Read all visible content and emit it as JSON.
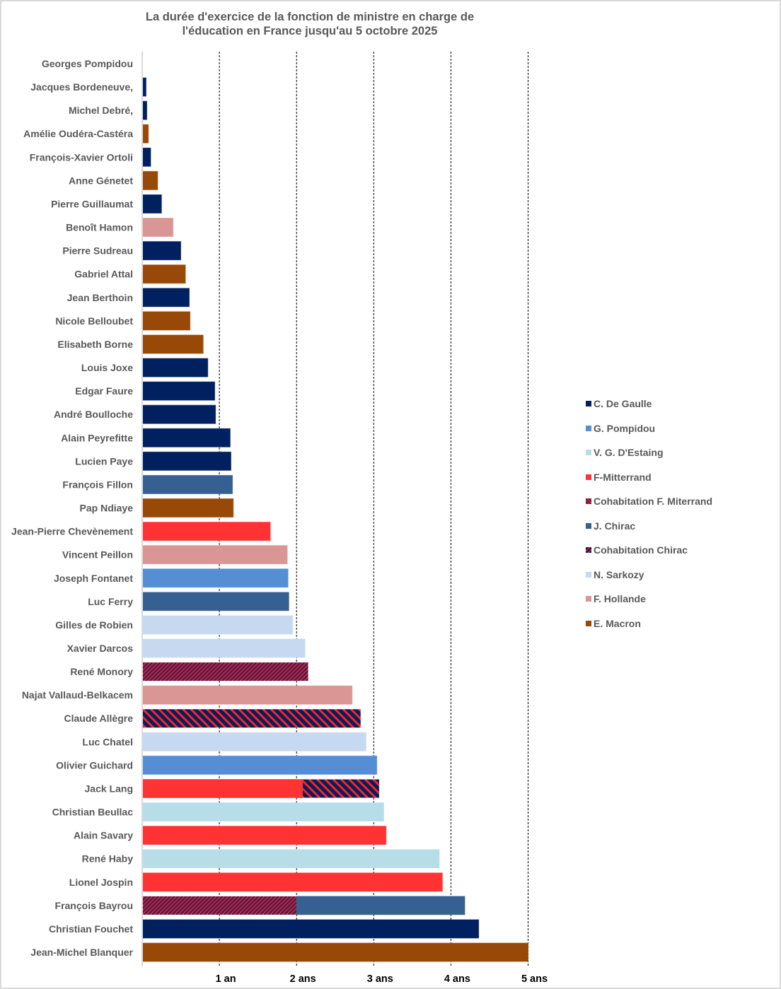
{
  "chart_data": {
    "type": "bar",
    "orientation": "horizontal",
    "stacked": true,
    "title": "La durée d'exercice de la fonction de ministre en charge de l'éducation en France jusqu'au 5 octobre 2025",
    "title_lines": [
      "La durée d'exercice de la fonction de ministre en charge de",
      "l'éducation en France jusqu'au 5 octobre 2025"
    ],
    "xlabel": "",
    "ylabel": "",
    "xlim": [
      0,
      5
    ],
    "x_ticks": [
      1,
      2,
      3,
      4,
      5
    ],
    "x_tick_labels": [
      "1 an",
      "2 ans",
      "3 ans",
      "4 ans",
      "5 ans"
    ],
    "grid": "vertical dashed",
    "legend_position": "right",
    "series_styles": {
      "C. De Gaulle": {
        "color": "#002060",
        "pattern": "solid"
      },
      "G. Pompidou": {
        "color": "#558ED5",
        "pattern": "solid"
      },
      "V. G. D'Estaing": {
        "color": "#B7DEE8",
        "pattern": "solid"
      },
      "F-Mitterrand": {
        "color": "#FF3333",
        "pattern": "solid"
      },
      "Cohabitation F. Miterrand": {
        "color": "#8B1A2E",
        "pattern": "fine-hatch",
        "colors": [
          "#FF2020",
          "#1F2060"
        ]
      },
      "J. Chirac": {
        "color": "#376092",
        "pattern": "solid"
      },
      "Cohabitation Chirac": {
        "color": "#002060",
        "pattern": "wide-hatch",
        "colors": [
          "#002060",
          "#FF2020"
        ]
      },
      "N. Sarkozy": {
        "color": "#C6D9F1",
        "pattern": "solid"
      },
      "F. Hollande": {
        "color": "#D99694",
        "pattern": "solid"
      },
      "E. Macron": {
        "color": "#984807",
        "pattern": "solid"
      }
    },
    "legend": [
      "C. De Gaulle",
      "G. Pompidou",
      "V. G. D'Estaing",
      "F-Mitterrand",
      "Cohabitation F. Miterrand",
      "J. Chirac",
      "Cohabitation Chirac",
      "N. Sarkozy",
      "F. Hollande",
      "E. Macron"
    ],
    "categories": [
      {
        "name": "Georges Pompidou",
        "segments": []
      },
      {
        "name": "Jacques Bordeneuve,",
        "segments": [
          {
            "series": "C. De Gaulle",
            "years": 0.05
          }
        ]
      },
      {
        "name": "Michel Debré,",
        "segments": [
          {
            "series": "C. De Gaulle",
            "years": 0.06
          }
        ]
      },
      {
        "name": "Amélie Oudéra-Castéra",
        "segments": [
          {
            "series": "E. Macron",
            "years": 0.08
          }
        ]
      },
      {
        "name": "François-Xavier Ortoli",
        "segments": [
          {
            "series": "C. De Gaulle",
            "years": 0.11
          }
        ]
      },
      {
        "name": "Anne Génetet",
        "segments": [
          {
            "series": "E. Macron",
            "years": 0.2
          }
        ]
      },
      {
        "name": "Pierre Guillaumat",
        "segments": [
          {
            "series": "C. De Gaulle",
            "years": 0.25
          }
        ]
      },
      {
        "name": "Benoît Hamon",
        "segments": [
          {
            "series": "F. Hollande",
            "years": 0.4
          }
        ]
      },
      {
        "name": "Pierre Sudreau",
        "segments": [
          {
            "series": "C. De Gaulle",
            "years": 0.5
          }
        ]
      },
      {
        "name": "Gabriel Attal",
        "segments": [
          {
            "series": "E. Macron",
            "years": 0.56
          }
        ]
      },
      {
        "name": "Jean Berthoin",
        "segments": [
          {
            "series": "C. De Gaulle",
            "years": 0.61
          }
        ]
      },
      {
        "name": "Nicole Belloubet",
        "segments": [
          {
            "series": "E. Macron",
            "years": 0.62
          }
        ]
      },
      {
        "name": "Elisabeth Borne",
        "segments": [
          {
            "series": "E. Macron",
            "years": 0.79
          }
        ]
      },
      {
        "name": "Louis Joxe",
        "segments": [
          {
            "series": "C. De Gaulle",
            "years": 0.85
          }
        ]
      },
      {
        "name": "Edgar Faure",
        "segments": [
          {
            "series": "C. De Gaulle",
            "years": 0.94
          }
        ]
      },
      {
        "name": "André Boulloche",
        "segments": [
          {
            "series": "C. De Gaulle",
            "years": 0.95
          }
        ]
      },
      {
        "name": "Alain Peyrefitte",
        "segments": [
          {
            "series": "C. De Gaulle",
            "years": 1.14
          }
        ]
      },
      {
        "name": "Lucien Paye",
        "segments": [
          {
            "series": "C. De Gaulle",
            "years": 1.15
          }
        ]
      },
      {
        "name": "François Fillon",
        "segments": [
          {
            "series": "J. Chirac",
            "years": 1.17
          }
        ]
      },
      {
        "name": "Pap Ndiaye",
        "segments": [
          {
            "series": "E. Macron",
            "years": 1.18
          }
        ]
      },
      {
        "name": "Jean-Pierre Chevènement",
        "segments": [
          {
            "series": "F-Mitterrand",
            "years": 1.66
          }
        ]
      },
      {
        "name": "Vincent Peillon",
        "segments": [
          {
            "series": "F. Hollande",
            "years": 1.88
          }
        ]
      },
      {
        "name": "Joseph Fontanet",
        "segments": [
          {
            "series": "G. Pompidou",
            "years": 1.89
          }
        ]
      },
      {
        "name": "Luc Ferry",
        "segments": [
          {
            "series": "J. Chirac",
            "years": 1.9
          }
        ]
      },
      {
        "name": "Gilles de Robien",
        "segments": [
          {
            "series": "N. Sarkozy",
            "years": 1.95
          }
        ]
      },
      {
        "name": "Xavier Darcos",
        "segments": [
          {
            "series": "N. Sarkozy",
            "years": 2.11
          }
        ]
      },
      {
        "name": "René Monory",
        "segments": [
          {
            "series": "Cohabitation F. Miterrand",
            "years": 2.15
          }
        ]
      },
      {
        "name": "Najat Vallaud-Belkacem",
        "segments": [
          {
            "series": "F. Hollande",
            "years": 2.72
          }
        ]
      },
      {
        "name": "Claude Allègre",
        "segments": [
          {
            "series": "Cohabitation Chirac",
            "years": 2.83
          }
        ]
      },
      {
        "name": "Luc Chatel",
        "segments": [
          {
            "series": "N. Sarkozy",
            "years": 2.9
          }
        ]
      },
      {
        "name": "Olivier Guichard",
        "segments": [
          {
            "series": "G. Pompidou",
            "years": 3.04
          }
        ]
      },
      {
        "name": "Jack Lang",
        "segments": [
          {
            "series": "F-Mitterrand",
            "years": 2.08
          },
          {
            "series": "Cohabitation Chirac",
            "years": 0.99
          }
        ]
      },
      {
        "name": "Christian Beullac",
        "segments": [
          {
            "series": "V. G. D'Estaing",
            "years": 3.13
          }
        ]
      },
      {
        "name": "Alain Savary",
        "segments": [
          {
            "series": "F-Mitterrand",
            "years": 3.16
          }
        ]
      },
      {
        "name": "René Haby",
        "segments": [
          {
            "series": "V. G. D'Estaing",
            "years": 3.85
          }
        ]
      },
      {
        "name": "Lionel Jospin",
        "segments": [
          {
            "series": "F-Mitterrand",
            "years": 3.89
          }
        ]
      },
      {
        "name": "François Bayrou",
        "segments": [
          {
            "series": "Cohabitation F. Miterrand",
            "years": 2.0
          },
          {
            "series": "J. Chirac",
            "years": 2.18
          }
        ]
      },
      {
        "name": "Christian Fouchet",
        "segments": [
          {
            "series": "C. De Gaulle",
            "years": 4.36
          }
        ]
      },
      {
        "name": "Jean-Michel Blanquer",
        "segments": [
          {
            "series": "E. Macron",
            "years": 5.0
          }
        ]
      }
    ]
  }
}
